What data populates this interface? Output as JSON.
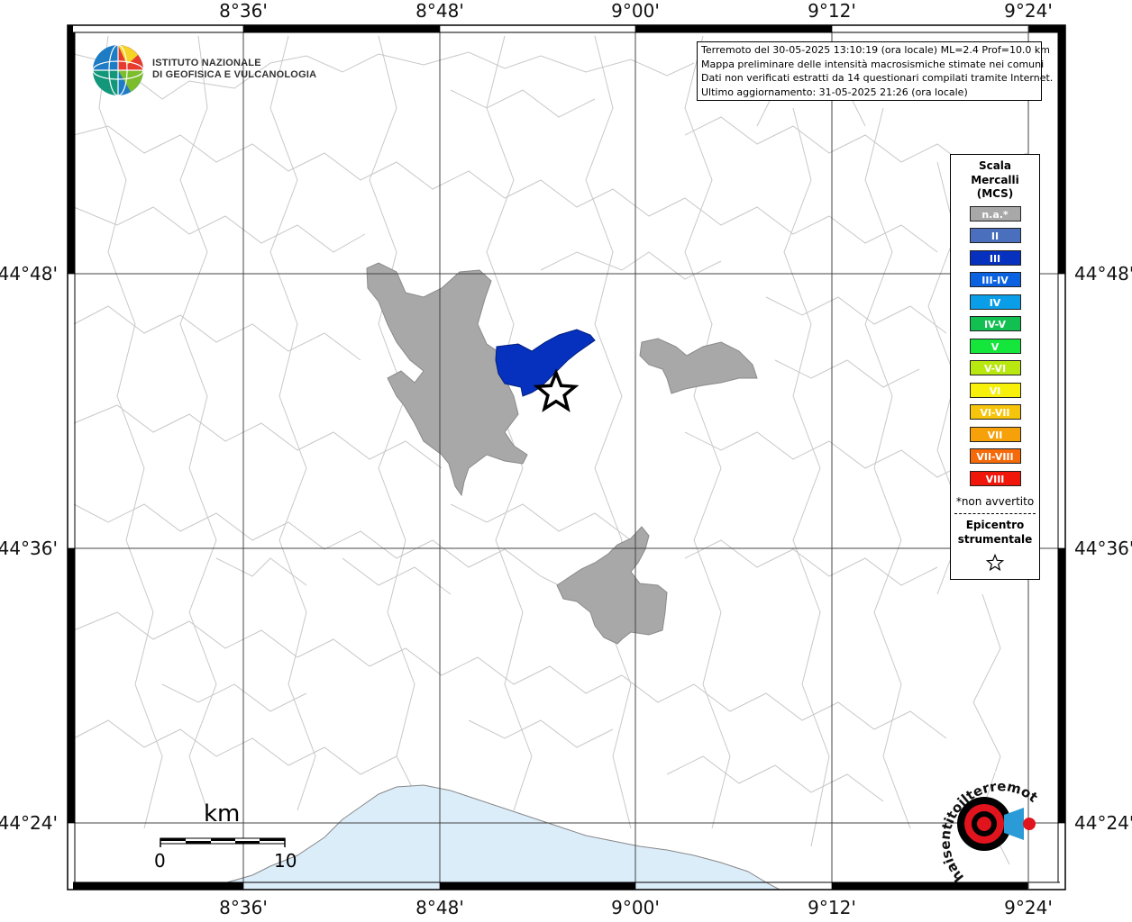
{
  "map": {
    "lon_ticks": [
      "8°36'",
      "8°48'",
      "9°00'",
      "9°12'",
      "9°24'"
    ],
    "lat_ticks": [
      "44°48'",
      "44°36'",
      "44°24'"
    ],
    "info_lines": [
      "Terremoto del 30-05-2025 13:10:19 (ora locale) ML=2.4 Prof=10.0 km",
      "Mappa preliminare delle intensità macrosismiche stimate nei comuni",
      "Dati non verificati estratti da 14 questionari compilati tramite Internet.",
      "Ultimo aggiornamento: 31-05-2025 21:26 (ora locale)"
    ],
    "logo": {
      "line1": "ISTITUTO NAZIONALE",
      "line2": "DI GEOFISICA E VULCANOLOGIA",
      "icon": "globe-logo-icon"
    },
    "watermark": {
      "text": "haisentitoilterremoto.it",
      "icon": "megaphone-logo-icon"
    },
    "scale_bar": {
      "unit": "km",
      "start": "0",
      "end": "10"
    },
    "colors": {
      "na": "#a8a8a8",
      "iii": "#0531be",
      "sea": "#dcedfa",
      "borders": "#c8c8c8"
    },
    "epicenter_icon": "star-icon"
  },
  "legend": {
    "title_lines": [
      "Scala",
      "Mercalli",
      "(MCS)"
    ],
    "items": [
      {
        "label": "n.a.*",
        "color": "#a8a8a8"
      },
      {
        "label": "II",
        "color": "#4a6fbd"
      },
      {
        "label": "III",
        "color": "#0531be"
      },
      {
        "label": "III-IV",
        "color": "#0a62e0"
      },
      {
        "label": "IV",
        "color": "#0a9ee8"
      },
      {
        "label": "IV-V",
        "color": "#12c052"
      },
      {
        "label": "V",
        "color": "#14e63c"
      },
      {
        "label": "V-VI",
        "color": "#b8e810"
      },
      {
        "label": "VI",
        "color": "#f6f00a"
      },
      {
        "label": "VI-VII",
        "color": "#f6c40a"
      },
      {
        "label": "VII",
        "color": "#f6a00a"
      },
      {
        "label": "VII-VIII",
        "color": "#f66a0a"
      },
      {
        "label": "VIII",
        "color": "#f0160a"
      }
    ],
    "note": "*non avvertito",
    "epicenter_lines": [
      "Epicentro",
      "strumentale"
    ]
  }
}
